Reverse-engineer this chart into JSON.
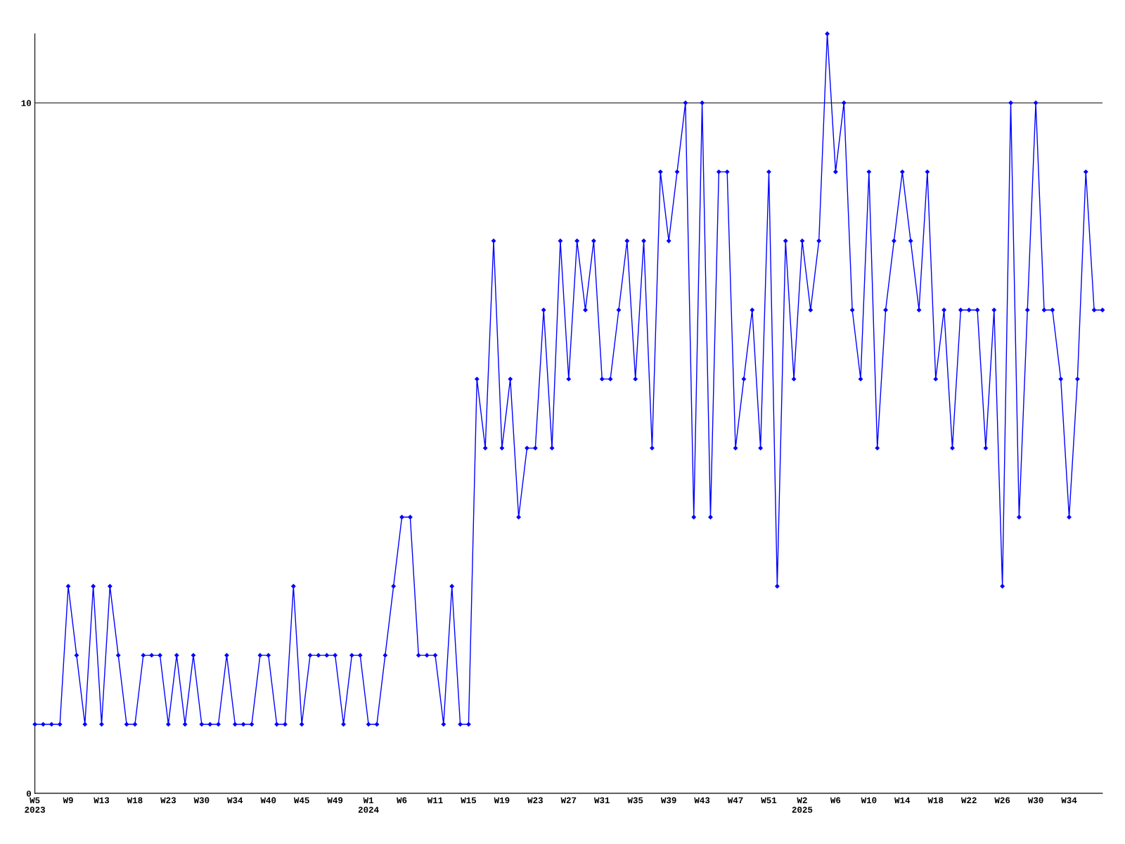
{
  "chart_data": {
    "type": "line",
    "categories": [
      "W5\n2023",
      null,
      null,
      null,
      "W9",
      null,
      null,
      null,
      "W13",
      null,
      null,
      null,
      "W18",
      null,
      null,
      null,
      "W23",
      null,
      null,
      null,
      "W30",
      null,
      null,
      null,
      "W34",
      null,
      null,
      null,
      "W40",
      null,
      null,
      null,
      "W45",
      null,
      null,
      null,
      "W49",
      null,
      null,
      null,
      "W1\n2024",
      null,
      null,
      null,
      "W6",
      null,
      null,
      null,
      "W11",
      null,
      null,
      null,
      "W15",
      null,
      null,
      null,
      "W19",
      null,
      null,
      null,
      "W23",
      null,
      null,
      null,
      "W27",
      null,
      null,
      null,
      "W31",
      null,
      null,
      null,
      "W35",
      null,
      null,
      null,
      "W39",
      null,
      null,
      null,
      "W43",
      null,
      null,
      null,
      "W47",
      null,
      null,
      null,
      "W51",
      null,
      null,
      null,
      "W2\n2025",
      null,
      null,
      null,
      "W6",
      null,
      null,
      null,
      "W10",
      null,
      null,
      null,
      "W14",
      null,
      null,
      null,
      "W18",
      null,
      null,
      null,
      "W22",
      null,
      null,
      null,
      "W26",
      null,
      null,
      null,
      "W30",
      null,
      null,
      null,
      "W34",
      null,
      null,
      null,
      null
    ],
    "series": [
      {
        "color": "#0000ff",
        "values": [
          1,
          1,
          1,
          1,
          3,
          2,
          1,
          3,
          1,
          3,
          2,
          1,
          1,
          2,
          2,
          2,
          1,
          2,
          1,
          2,
          1,
          1,
          1,
          2,
          1,
          1,
          1,
          2,
          2,
          1,
          1,
          3,
          1,
          2,
          2,
          2,
          2,
          1,
          2,
          2,
          1,
          1,
          2,
          3,
          4,
          4,
          2,
          2,
          2,
          1,
          3,
          1,
          1,
          6,
          5,
          8,
          5,
          6,
          4,
          5,
          5,
          7,
          5,
          8,
          6,
          8,
          7,
          8,
          6,
          6,
          7,
          8,
          6,
          8,
          5,
          9,
          8,
          9,
          10,
          4,
          10,
          4,
          9,
          9,
          5,
          6,
          7,
          5,
          9,
          3,
          8,
          6,
          8,
          7,
          8,
          11,
          9,
          10,
          7,
          6,
          9,
          5,
          7,
          8,
          9,
          8,
          7,
          9,
          6,
          7,
          5,
          7,
          7,
          7,
          5,
          7,
          3,
          10,
          4,
          7,
          10,
          7,
          7,
          6,
          4,
          6,
          9,
          7,
          7
        ]
      }
    ],
    "ylim": [
      0,
      11
    ],
    "yticks": [
      0,
      10
    ],
    "grid": "y",
    "marker": "diamond",
    "line_style": "solid"
  }
}
